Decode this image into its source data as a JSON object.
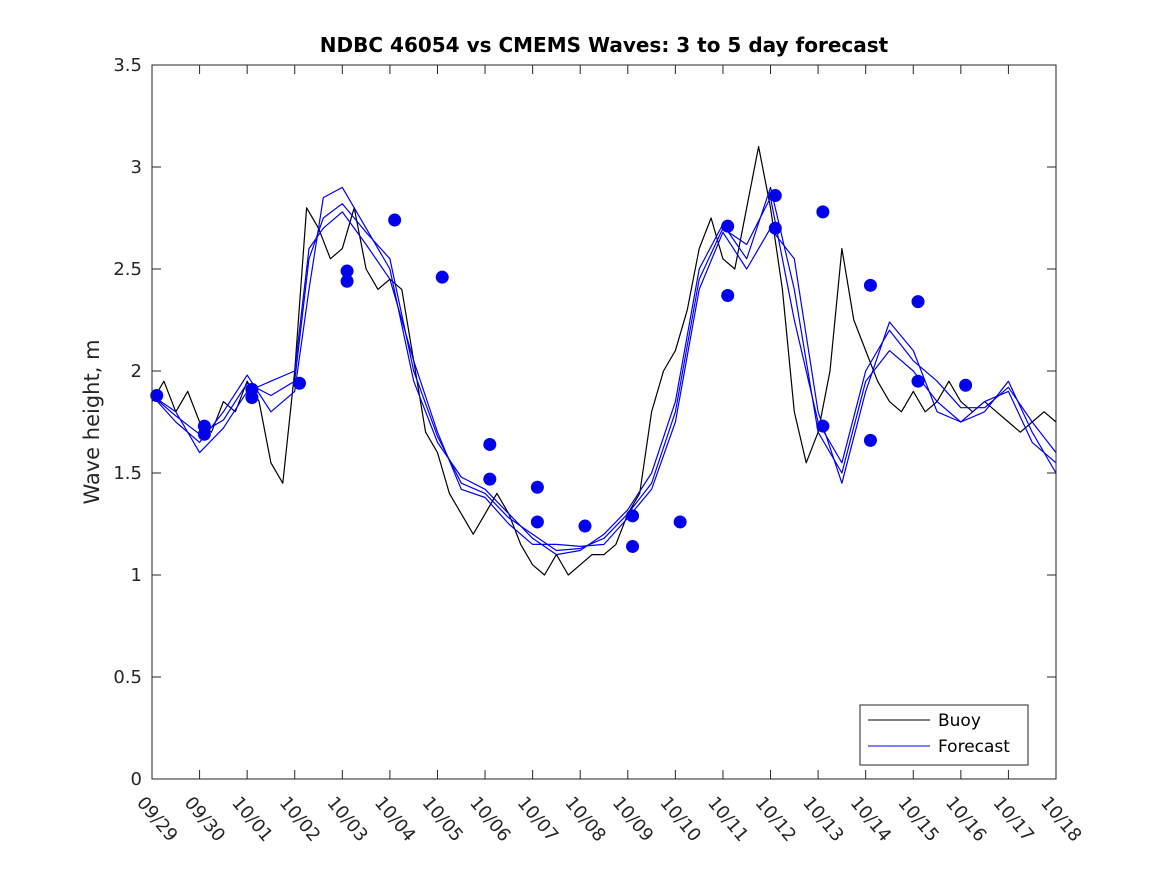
{
  "chart_data": {
    "type": "line",
    "title": "NDBC 46054 vs CMEMS Waves: 3 to 5 day forecast",
    "ylabel": "Wave height, m",
    "xlabel": "",
    "ylim": [
      0,
      3.5
    ],
    "yticks": [
      "0",
      "0.5",
      "1",
      "1.5",
      "2",
      "2.5",
      "3",
      "3.5"
    ],
    "xlim": [
      0,
      19
    ],
    "xtick_labels": [
      "09/29",
      "09/30",
      "10/01",
      "10/02",
      "10/03",
      "10/04",
      "10/05",
      "10/06",
      "10/07",
      "10/08",
      "10/09",
      "10/10",
      "10/11",
      "10/12",
      "10/13",
      "10/14",
      "10/15",
      "10/16",
      "10/17",
      "10/18"
    ],
    "legend": {
      "position": "bottom-right",
      "entries": [
        "Buoy",
        "Forecast"
      ]
    },
    "colors": {
      "buoy": "#000000",
      "forecast": "#0000ee"
    },
    "series": [
      {
        "name": "Buoy",
        "style": "line",
        "x": [
          0.0,
          0.25,
          0.5,
          0.75,
          1.0,
          1.25,
          1.5,
          1.75,
          2.0,
          2.25,
          2.5,
          2.75,
          3.0,
          3.25,
          3.5,
          3.75,
          4.0,
          4.25,
          4.5,
          4.75,
          5.0,
          5.25,
          5.5,
          5.75,
          6.0,
          6.25,
          6.5,
          6.75,
          7.0,
          7.25,
          7.5,
          7.75,
          8.0,
          8.25,
          8.5,
          8.75,
          9.0,
          9.25,
          9.5,
          9.75,
          10.0,
          10.25,
          10.5,
          10.75,
          11.0,
          11.25,
          11.5,
          11.75,
          12.0,
          12.25,
          12.5,
          12.75,
          13.0,
          13.25,
          13.5,
          13.75,
          14.0,
          14.25,
          14.5,
          14.75,
          15.0,
          15.25,
          15.5,
          15.75,
          16.0,
          16.25,
          16.5,
          16.75,
          17.0,
          17.25,
          17.5,
          17.75,
          18.0,
          18.25,
          18.5,
          18.75,
          19.0
        ],
        "y": [
          1.85,
          1.95,
          1.8,
          1.9,
          1.75,
          1.7,
          1.85,
          1.8,
          1.95,
          1.85,
          1.55,
          1.45,
          2.0,
          2.8,
          2.7,
          2.55,
          2.6,
          2.8,
          2.5,
          2.4,
          2.45,
          2.4,
          2.05,
          1.7,
          1.6,
          1.4,
          1.3,
          1.2,
          1.3,
          1.4,
          1.3,
          1.15,
          1.05,
          1.0,
          1.1,
          1.0,
          1.05,
          1.1,
          1.1,
          1.15,
          1.3,
          1.4,
          1.8,
          2.0,
          2.1,
          2.3,
          2.6,
          2.75,
          2.55,
          2.5,
          2.8,
          3.1,
          2.8,
          2.4,
          1.8,
          1.55,
          1.7,
          2.0,
          2.6,
          2.25,
          2.1,
          1.95,
          1.85,
          1.8,
          1.9,
          1.8,
          1.85,
          1.95,
          1.85,
          1.8,
          1.85,
          1.8,
          1.75,
          1.7,
          1.75,
          1.8,
          1.75
        ]
      },
      {
        "name": "Forecast",
        "style": "line",
        "x": [
          0.0,
          0.5,
          1.0,
          1.5,
          2.0,
          2.5,
          3.0,
          3.3,
          3.6,
          4.0,
          4.5,
          5.0,
          5.5,
          6.0,
          6.5,
          7.0,
          7.5,
          8.0,
          8.5,
          9.0,
          9.5,
          10.0,
          10.5,
          11.0,
          11.5,
          12.0,
          12.5,
          13.0,
          13.5,
          14.0,
          14.5,
          15.0,
          15.5,
          16.0,
          16.5,
          17.0,
          17.5,
          18.0,
          18.5,
          19.0
        ],
        "y": [
          1.88,
          1.78,
          1.69,
          1.76,
          1.94,
          1.88,
          1.95,
          2.55,
          2.75,
          2.82,
          2.68,
          2.55,
          2.0,
          1.68,
          1.45,
          1.4,
          1.28,
          1.2,
          1.12,
          1.13,
          1.18,
          1.3,
          1.45,
          1.8,
          2.45,
          2.7,
          2.62,
          2.85,
          2.25,
          1.75,
          1.55,
          2.0,
          2.2,
          2.05,
          1.95,
          1.82,
          1.82,
          1.92,
          1.75,
          1.6
        ]
      },
      {
        "name": "Forecast",
        "style": "line",
        "x": [
          0.0,
          0.5,
          1.0,
          1.5,
          2.0,
          2.5,
          3.0,
          3.3,
          3.6,
          4.0,
          4.5,
          5.0,
          5.5,
          6.0,
          6.5,
          7.0,
          7.5,
          8.0,
          8.5,
          9.0,
          9.5,
          10.0,
          10.5,
          11.0,
          11.5,
          12.0,
          12.5,
          13.0,
          13.5,
          14.0,
          14.5,
          15.0,
          15.5,
          16.0,
          16.5,
          17.0,
          17.5,
          18.0,
          18.5,
          19.0
        ],
        "y": [
          1.88,
          1.75,
          1.65,
          1.8,
          1.98,
          1.8,
          1.9,
          2.4,
          2.85,
          2.9,
          2.7,
          2.5,
          1.95,
          1.65,
          1.48,
          1.42,
          1.3,
          1.18,
          1.1,
          1.12,
          1.2,
          1.32,
          1.5,
          1.85,
          2.5,
          2.72,
          2.55,
          2.9,
          2.4,
          1.7,
          1.5,
          1.95,
          2.1,
          2.0,
          1.85,
          1.75,
          1.85,
          1.9,
          1.65,
          1.55
        ]
      },
      {
        "name": "Forecast",
        "style": "line",
        "x": [
          0.0,
          0.5,
          1.0,
          1.5,
          2.0,
          2.5,
          3.0,
          3.3,
          3.6,
          4.0,
          4.5,
          5.0,
          5.5,
          6.0,
          6.5,
          7.0,
          7.5,
          8.0,
          8.5,
          9.0,
          9.5,
          10.0,
          10.5,
          11.0,
          11.5,
          12.0,
          12.5,
          13.0,
          13.5,
          14.0,
          14.5,
          15.0,
          15.5,
          16.0,
          16.5,
          17.0,
          17.5,
          18.0,
          18.5,
          19.0
        ],
        "y": [
          1.88,
          1.8,
          1.6,
          1.72,
          1.9,
          1.95,
          2.0,
          2.6,
          2.7,
          2.78,
          2.62,
          2.45,
          2.05,
          1.7,
          1.42,
          1.38,
          1.25,
          1.15,
          1.15,
          1.14,
          1.15,
          1.28,
          1.42,
          1.75,
          2.4,
          2.68,
          2.5,
          2.7,
          2.55,
          1.8,
          1.45,
          1.9,
          2.24,
          2.1,
          1.8,
          1.75,
          1.8,
          1.95,
          1.7,
          1.5
        ]
      },
      {
        "name": "Forecast",
        "style": "markers",
        "x": [
          0.1,
          1.1,
          1.1,
          2.1,
          2.1,
          3.1,
          4.1,
          4.1,
          5.1,
          6.1,
          7.1,
          7.1,
          8.1,
          8.1,
          9.1,
          10.1,
          10.1,
          11.1,
          12.1,
          12.1,
          13.1,
          13.1,
          14.1,
          14.1,
          15.1,
          15.1,
          16.1,
          16.1,
          17.1
        ],
        "y": [
          1.88,
          1.73,
          1.69,
          1.91,
          1.87,
          1.94,
          2.49,
          2.44,
          2.74,
          2.46,
          1.64,
          1.47,
          1.43,
          1.26,
          1.24,
          1.14,
          1.29,
          1.26,
          2.37,
          2.71,
          2.7,
          2.86,
          2.78,
          1.73,
          1.66,
          2.42,
          2.34,
          1.95,
          1.93
        ]
      }
    ]
  }
}
